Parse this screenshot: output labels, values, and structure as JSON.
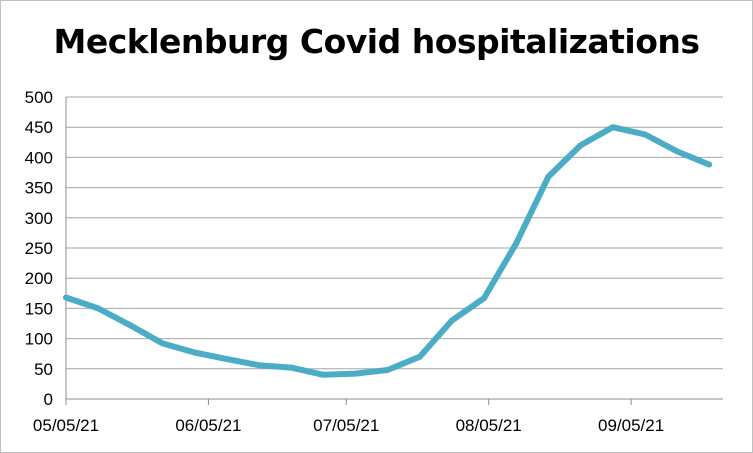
{
  "chart_data": {
    "type": "line",
    "title": "Mecklenburg Covid hospitalizations",
    "xlabel": "",
    "ylabel": "",
    "ylim": [
      0,
      500
    ],
    "yticks": [
      0,
      50,
      100,
      150,
      200,
      250,
      300,
      350,
      400,
      450,
      500
    ],
    "xlim": [
      "2021-05-05",
      "2021-09-25"
    ],
    "xtick_labels": [
      "05/05/21",
      "06/05/21",
      "07/05/21",
      "08/05/21",
      "09/05/21"
    ],
    "xtick_dates": [
      "2021-05-05",
      "2021-06-05",
      "2021-07-05",
      "2021-08-05",
      "2021-09-05"
    ],
    "grid": "horizontal",
    "legend": "none",
    "line_color": "#4bacc6",
    "series": [
      {
        "x": [
          "2021-05-05",
          "2021-05-12",
          "2021-05-19",
          "2021-05-26",
          "2021-06-02",
          "2021-06-09",
          "2021-06-16",
          "2021-06-23",
          "2021-06-30",
          "2021-07-07",
          "2021-07-14",
          "2021-07-21",
          "2021-07-28",
          "2021-08-04",
          "2021-08-11",
          "2021-08-18",
          "2021-08-25",
          "2021-09-01",
          "2021-09-08",
          "2021-09-15",
          "2021-09-22"
        ],
        "y": [
          168,
          150,
          122,
          92,
          77,
          66,
          56,
          52,
          40,
          42,
          48,
          70,
          130,
          167,
          258,
          368,
          420,
          450,
          438,
          410,
          388
        ]
      }
    ]
  }
}
